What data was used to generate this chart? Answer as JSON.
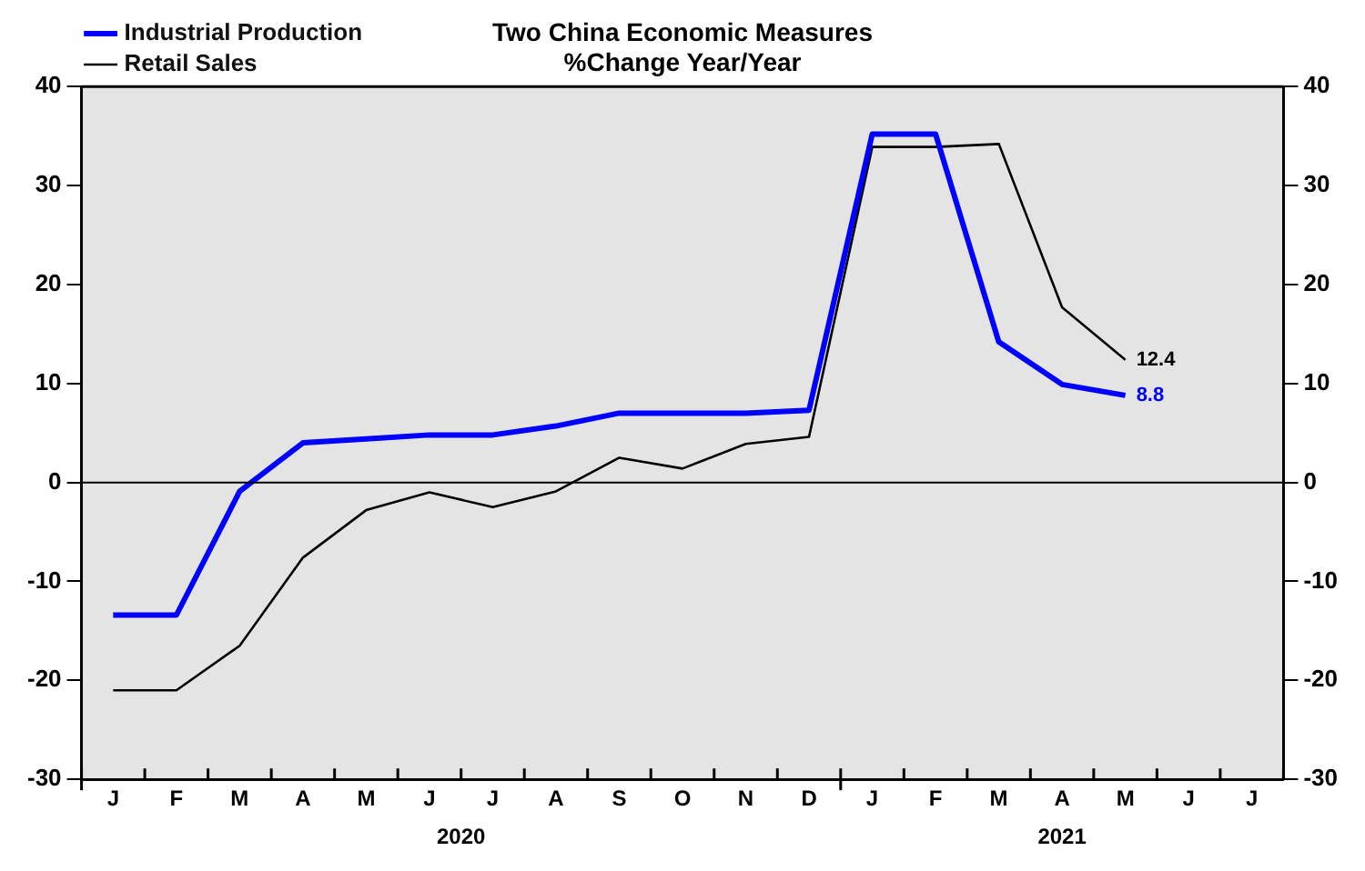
{
  "chart_data": {
    "type": "line",
    "title": "Two China Economic Measures",
    "subtitle": "%Change Year/Year",
    "categories": [
      "J",
      "F",
      "M",
      "A",
      "M",
      "J",
      "J",
      "A",
      "S",
      "O",
      "N",
      "D",
      "J",
      "F",
      "M",
      "A",
      "M",
      "J",
      "J"
    ],
    "series": [
      {
        "name": "Industrial Production",
        "color": "#0000ff",
        "values": [
          -13.4,
          -13.4,
          -0.9,
          4.0,
          4.4,
          4.8,
          4.8,
          5.7,
          7.0,
          7.0,
          7.0,
          7.3,
          35.2,
          35.2,
          14.2,
          9.9,
          8.8,
          null,
          null
        ],
        "value_labels": [
          null,
          null,
          null,
          null,
          null,
          null,
          null,
          null,
          null,
          null,
          null,
          null,
          null,
          null,
          null,
          null,
          "8.8",
          null,
          null
        ]
      },
      {
        "name": "Retail Sales",
        "color": "#000000",
        "values": [
          -21.0,
          -21.0,
          -16.5,
          -7.6,
          -2.8,
          -1.0,
          -2.5,
          -0.9,
          2.5,
          1.4,
          3.9,
          4.6,
          33.9,
          33.9,
          34.2,
          17.7,
          12.4,
          null,
          null
        ],
        "value_labels": [
          null,
          null,
          null,
          null,
          null,
          null,
          null,
          null,
          null,
          null,
          null,
          null,
          null,
          null,
          null,
          null,
          "12.4",
          null,
          null
        ]
      }
    ],
    "ylim": [
      -30,
      40
    ],
    "yticks": [
      -30,
      -20,
      -10,
      0,
      10,
      20,
      30,
      40
    ],
    "y2lim": [
      -30,
      40
    ],
    "y2ticks": [
      -30,
      -20,
      -10,
      0,
      10,
      20,
      30,
      40
    ],
    "ref_lines": [
      {
        "axis": "y",
        "value": 0,
        "color": "#000000"
      }
    ],
    "annotations": [
      "2020",
      "2021"
    ],
    "grid": false,
    "legend": "top left",
    "marker": "none",
    "line_style": "solid"
  }
}
